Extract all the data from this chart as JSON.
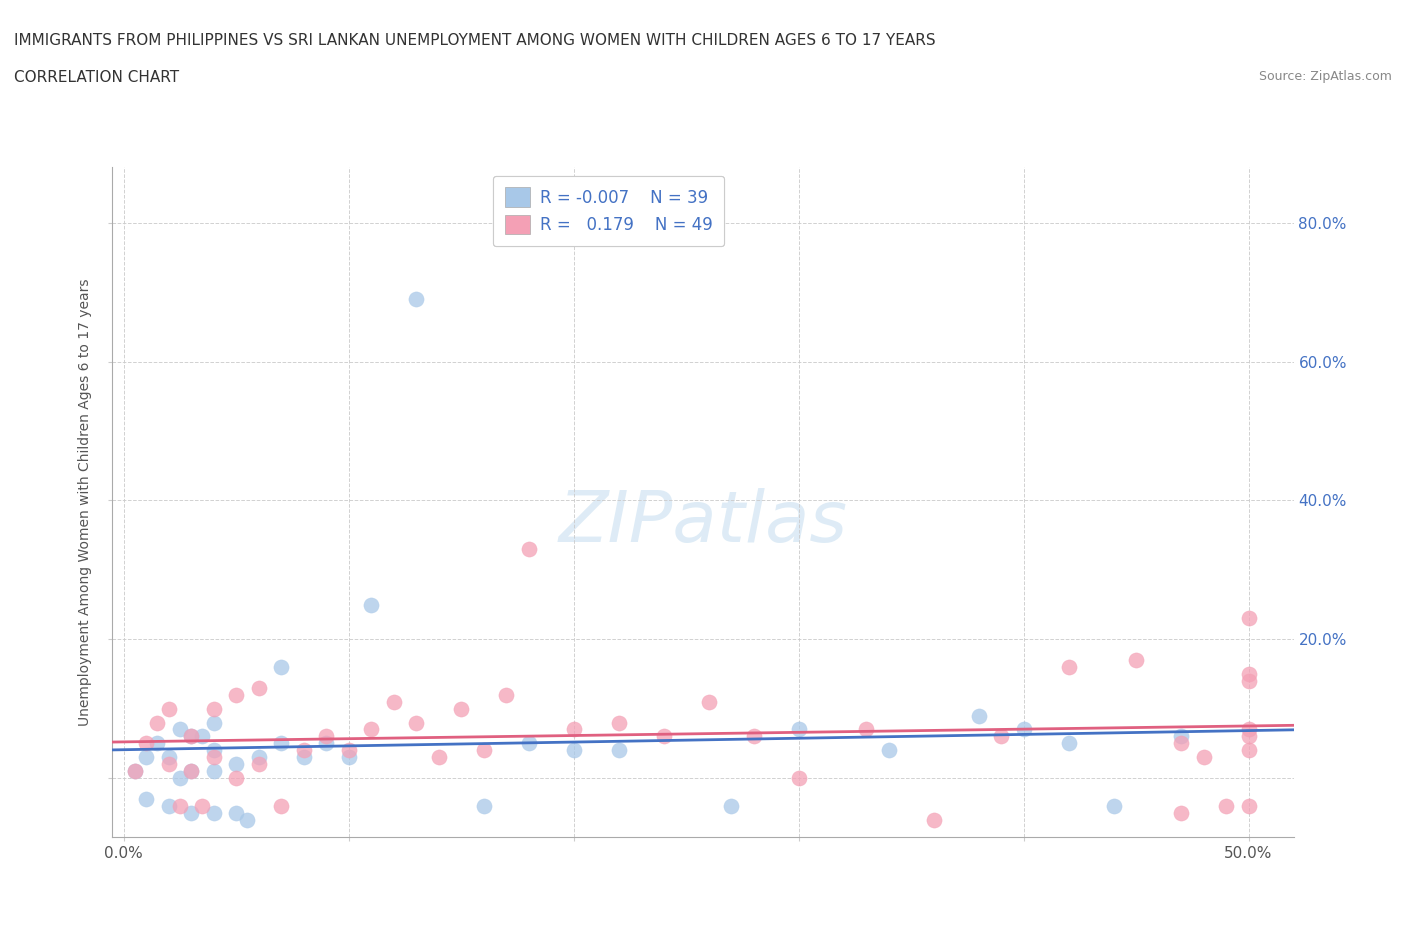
{
  "title_line1": "IMMIGRANTS FROM PHILIPPINES VS SRI LANKAN UNEMPLOYMENT AMONG WOMEN WITH CHILDREN AGES 6 TO 17 YEARS",
  "title_line2": "CORRELATION CHART",
  "source_text": "Source: ZipAtlas.com",
  "ylabel": "Unemployment Among Women with Children Ages 6 to 17 years",
  "xlim": [
    -0.005,
    0.52
  ],
  "ylim": [
    -0.085,
    0.88
  ],
  "watermark": "ZIPatlas",
  "color_philippines": "#a8c8e8",
  "color_srilanka": "#f4a0b5",
  "color_philippines_line": "#4472c4",
  "color_srilanka_line": "#e06080",
  "philippines_x": [
    0.005,
    0.01,
    0.01,
    0.015,
    0.02,
    0.02,
    0.02,
    0.025,
    0.03,
    0.03,
    0.03,
    0.035,
    0.04,
    0.04,
    0.04,
    0.04,
    0.05,
    0.05,
    0.055,
    0.06,
    0.07,
    0.07,
    0.08,
    0.09,
    0.1,
    0.11,
    0.13,
    0.14,
    0.16,
    0.18,
    0.2,
    0.22,
    0.27,
    0.3,
    0.34,
    0.38,
    0.42,
    0.44,
    0.47
  ],
  "philippines_y": [
    0.01,
    0.04,
    -0.03,
    0.06,
    -0.04,
    0.02,
    0.06,
    0.08,
    0.0,
    0.04,
    -0.06,
    0.07,
    0.0,
    0.03,
    -0.04,
    0.08,
    -0.05,
    0.03,
    -0.06,
    0.04,
    0.05,
    0.16,
    0.04,
    0.06,
    0.04,
    0.26,
    0.7,
    0.05,
    -0.04,
    0.06,
    0.05,
    0.05,
    -0.04,
    0.08,
    0.05,
    0.1,
    0.06,
    -0.04,
    0.07
  ],
  "srilanka_x": [
    0.005,
    0.01,
    0.015,
    0.02,
    0.02,
    0.025,
    0.03,
    0.03,
    0.035,
    0.04,
    0.04,
    0.05,
    0.05,
    0.06,
    0.06,
    0.07,
    0.08,
    0.09,
    0.1,
    0.11,
    0.12,
    0.13,
    0.14,
    0.15,
    0.16,
    0.17,
    0.18,
    0.2,
    0.22,
    0.24,
    0.26,
    0.28,
    0.3,
    0.33,
    0.36,
    0.39,
    0.42,
    0.45,
    0.47,
    0.48,
    0.49,
    0.5,
    0.5,
    0.5,
    0.5,
    0.5,
    0.5,
    0.5,
    0.5
  ],
  "srilanka_y": [
    0.01,
    0.05,
    0.08,
    0.02,
    0.11,
    -0.04,
    0.01,
    0.07,
    -0.04,
    0.04,
    0.11,
    0.01,
    0.13,
    0.03,
    0.14,
    -0.04,
    0.05,
    0.07,
    0.05,
    0.08,
    0.12,
    0.09,
    0.04,
    0.11,
    0.05,
    0.13,
    0.34,
    0.08,
    0.09,
    0.07,
    0.12,
    0.07,
    0.01,
    0.08,
    -0.06,
    0.07,
    0.17,
    0.18,
    -0.06,
    0.04,
    -0.04,
    0.05,
    0.07,
    0.16,
    0.25,
    -0.04,
    0.04,
    0.08,
    0.16
  ]
}
